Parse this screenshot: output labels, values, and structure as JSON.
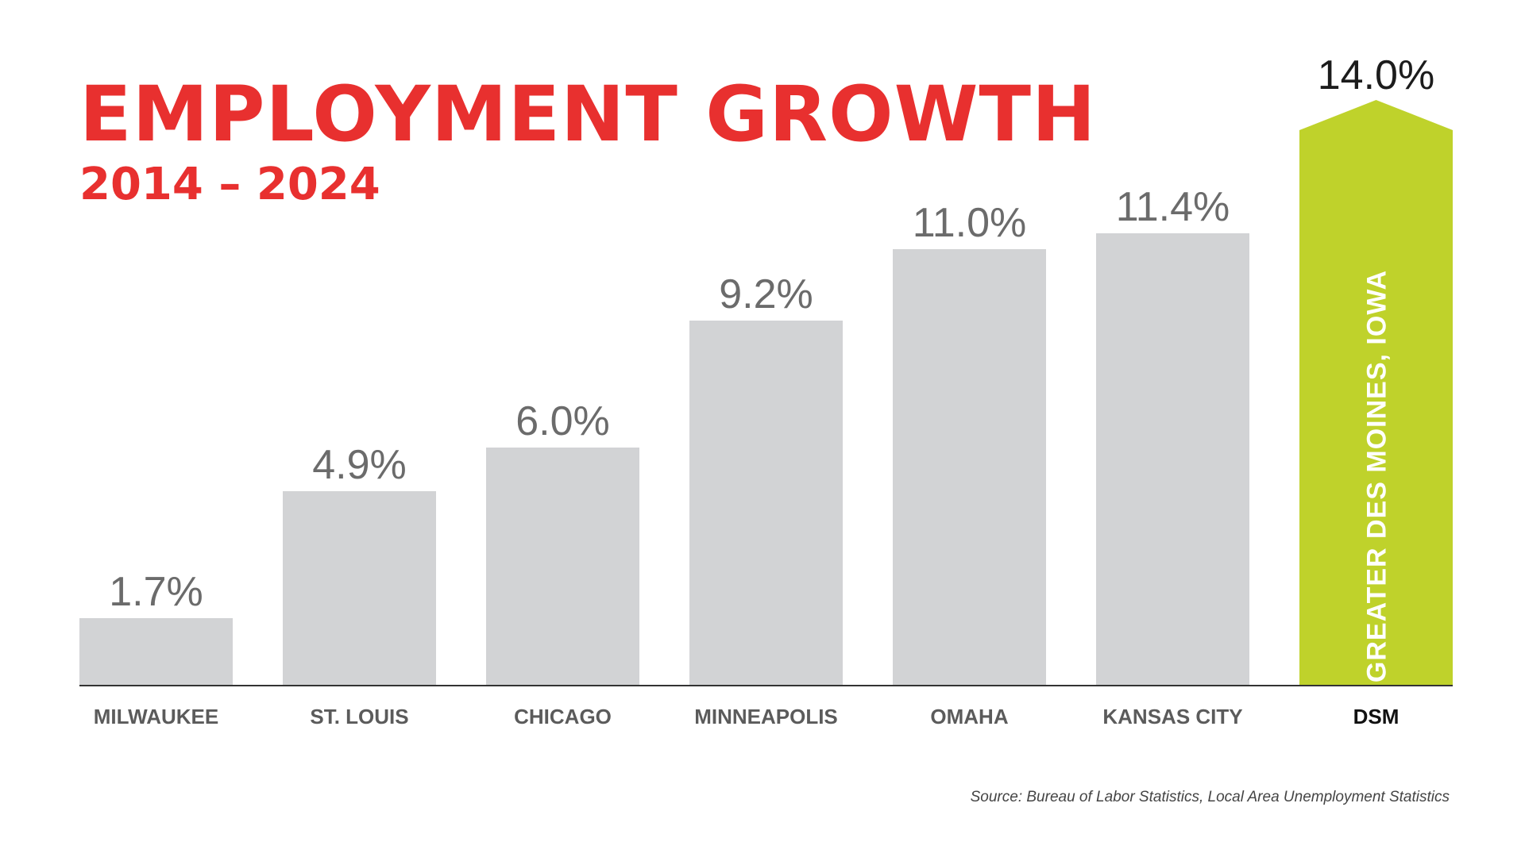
{
  "chart_data": {
    "type": "bar",
    "title": "EMPLOYMENT GROWTH",
    "subtitle": "2014 – 2024",
    "categories": [
      "MILWAUKEE",
      "ST. LOUIS",
      "CHICAGO",
      "MINNEAPOLIS",
      "OMAHA",
      "KANSAS CITY",
      "DSM"
    ],
    "values": [
      1.7,
      4.9,
      6.0,
      9.2,
      11.0,
      11.4,
      14.0
    ],
    "value_labels": [
      "1.7%",
      "4.9%",
      "6.0%",
      "9.2%",
      "11.0%",
      "11.4%",
      "14.0%"
    ],
    "highlight_index": 6,
    "highlight_bar_label": "GREATER DES MOINES, IOWA",
    "ylim": [
      0,
      14.8
    ],
    "xlabel": "",
    "ylabel": "",
    "grid": false,
    "unit": "%"
  },
  "colors": {
    "title": "#e8302f",
    "bar": "#d2d3d5",
    "highlight": "#bfd22b",
    "axis": "#333333"
  },
  "source": "Source: Bureau of Labor Statistics, Local Area Unemployment Statistics"
}
